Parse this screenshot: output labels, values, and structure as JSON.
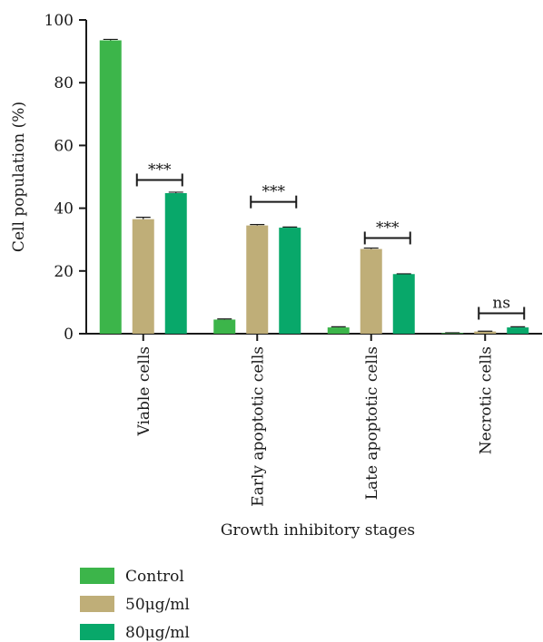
{
  "chart_data": {
    "type": "bar",
    "xlabel": "Growth inhibitory stages",
    "ylabel": "Cell population (%)",
    "ylim": [
      0,
      100
    ],
    "yticks": [
      0,
      20,
      40,
      60,
      80,
      100
    ],
    "categories": [
      "Viable cells",
      "Early apoptotic cells",
      "Late apoptotic cells",
      "Necrotic cells"
    ],
    "series": [
      {
        "name": "Control",
        "color": "#3cb54a",
        "values": [
          93.5,
          4.5,
          2.0,
          0.2
        ],
        "errors": [
          0.3,
          0.2,
          0.2,
          0.1
        ]
      },
      {
        "name": "50μg/ml",
        "color": "#bfae78",
        "values": [
          36.5,
          34.5,
          27.0,
          0.7
        ],
        "errors": [
          0.6,
          0.3,
          0.3,
          0.1
        ]
      },
      {
        "name": "80μg/ml",
        "color": "#08a86a",
        "values": [
          44.8,
          33.8,
          19.0,
          2.0
        ],
        "errors": [
          0.3,
          0.2,
          0.1,
          0.2
        ]
      }
    ],
    "significance": [
      {
        "category": "Viable cells",
        "label": "***",
        "y": 49
      },
      {
        "category": "Early apoptotic cells",
        "label": "***",
        "y": 42
      },
      {
        "category": "Late apoptotic cells",
        "label": "***",
        "y": 30.5
      },
      {
        "category": "Necrotic cells",
        "label": "ns",
        "y": 6.5
      }
    ],
    "legend_position": "bottom-left"
  }
}
